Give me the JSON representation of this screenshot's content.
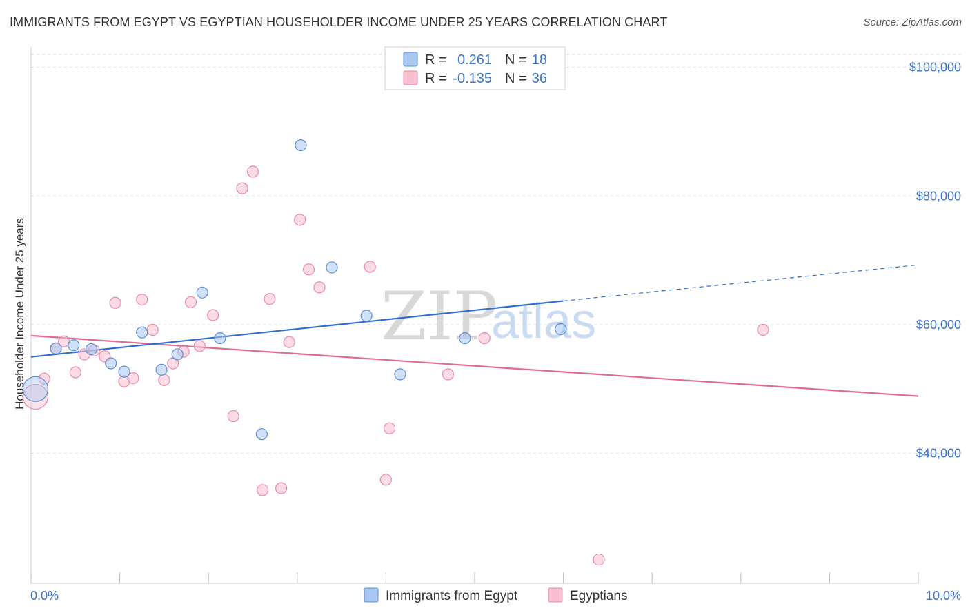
{
  "header": {
    "title": "IMMIGRANTS FROM EGYPT VS EGYPTIAN HOUSEHOLDER INCOME UNDER 25 YEARS CORRELATION CHART",
    "source": "Source: ZipAtlas.com"
  },
  "watermark": {
    "zip": "ZIP",
    "atlas": "atlas"
  },
  "legend_top": [
    {
      "r_label": "R =",
      "r_value": "0.261",
      "n_label": "N =",
      "n_value": "18"
    },
    {
      "r_label": "R =",
      "r_value": "-0.135",
      "n_label": "N =",
      "n_value": "36"
    }
  ],
  "colors": {
    "blue_fill": "#aac7ef",
    "blue_stroke": "#5b8fd6",
    "blue_line": "#2f6fcc",
    "pink_fill": "#f8bfd0",
    "pink_stroke": "#e78aa8",
    "pink_line": "#e06b96",
    "tick_text": "#3d74c8",
    "grid": "#d9d9d9"
  },
  "chart_data": {
    "type": "scatter",
    "title": "IMMIGRANTS FROM EGYPT VS EGYPTIAN HOUSEHOLDER INCOME UNDER 25 YEARS CORRELATION CHART",
    "xlabel": "",
    "ylabel": "Householder Income Under 25 years",
    "xlim": [
      0,
      10
    ],
    "ylim": [
      21000,
      102000
    ],
    "x_tick_labels": [
      "0.0%",
      "10.0%"
    ],
    "y_ticks": [
      40000,
      60000,
      80000,
      100000
    ],
    "y_tick_labels": [
      "$40,000",
      "$60,000",
      "$80,000",
      "$100,000"
    ],
    "grid": true,
    "legend_position": "top-center",
    "series": [
      {
        "name": "Immigrants from Egypt",
        "color": "#aac7ef",
        "points": [
          {
            "x": 0.05,
            "y": 50000,
            "big": true
          },
          {
            "x": 0.28,
            "y": 56300
          },
          {
            "x": 0.48,
            "y": 56800
          },
          {
            "x": 0.68,
            "y": 56200
          },
          {
            "x": 0.9,
            "y": 54000
          },
          {
            "x": 1.05,
            "y": 52700
          },
          {
            "x": 1.25,
            "y": 58800
          },
          {
            "x": 1.47,
            "y": 53000
          },
          {
            "x": 1.65,
            "y": 55400
          },
          {
            "x": 1.93,
            "y": 65000
          },
          {
            "x": 2.13,
            "y": 57900
          },
          {
            "x": 2.6,
            "y": 43000
          },
          {
            "x": 3.04,
            "y": 87900
          },
          {
            "x": 3.39,
            "y": 68900
          },
          {
            "x": 3.78,
            "y": 61400
          },
          {
            "x": 4.16,
            "y": 52300
          },
          {
            "x": 4.89,
            "y": 57900
          },
          {
            "x": 5.97,
            "y": 59300
          }
        ],
        "trend": {
          "x0": 0,
          "y0": 55000,
          "x1": 6.0,
          "y1": 63700,
          "x_dash_end": 10.0,
          "y_dash_end": 69300
        }
      },
      {
        "name": "Egyptians",
        "color": "#f8bfd0",
        "points": [
          {
            "x": 0.05,
            "y": 48800,
            "big": true
          },
          {
            "x": 0.15,
            "y": 51600
          },
          {
            "x": 0.28,
            "y": 56300
          },
          {
            "x": 0.37,
            "y": 57400
          },
          {
            "x": 0.5,
            "y": 52600
          },
          {
            "x": 0.6,
            "y": 55400
          },
          {
            "x": 0.71,
            "y": 56000
          },
          {
            "x": 0.83,
            "y": 55100
          },
          {
            "x": 0.95,
            "y": 63400
          },
          {
            "x": 1.05,
            "y": 51200
          },
          {
            "x": 1.15,
            "y": 51700
          },
          {
            "x": 1.25,
            "y": 63900
          },
          {
            "x": 1.37,
            "y": 59200
          },
          {
            "x": 1.5,
            "y": 51400
          },
          {
            "x": 1.6,
            "y": 54000
          },
          {
            "x": 1.72,
            "y": 55800
          },
          {
            "x": 1.8,
            "y": 63500
          },
          {
            "x": 1.9,
            "y": 56700
          },
          {
            "x": 2.05,
            "y": 61500
          },
          {
            "x": 2.28,
            "y": 45800
          },
          {
            "x": 2.38,
            "y": 81200
          },
          {
            "x": 2.5,
            "y": 83800
          },
          {
            "x": 2.61,
            "y": 34300
          },
          {
            "x": 2.69,
            "y": 64000
          },
          {
            "x": 2.82,
            "y": 34600
          },
          {
            "x": 2.91,
            "y": 57300
          },
          {
            "x": 3.03,
            "y": 76300
          },
          {
            "x": 3.13,
            "y": 68600
          },
          {
            "x": 3.25,
            "y": 65800
          },
          {
            "x": 3.82,
            "y": 69000
          },
          {
            "x": 4.0,
            "y": 35900
          },
          {
            "x": 4.04,
            "y": 43900
          },
          {
            "x": 4.7,
            "y": 52300
          },
          {
            "x": 5.11,
            "y": 57900
          },
          {
            "x": 6.4,
            "y": 23500
          },
          {
            "x": 8.25,
            "y": 59200
          }
        ],
        "trend": {
          "x0": 0,
          "y0": 58300,
          "x1": 10.0,
          "y1": 48900
        }
      }
    ]
  },
  "legend_bottom": [
    {
      "label": "Immigrants from Egypt"
    },
    {
      "label": "Egyptians"
    }
  ]
}
